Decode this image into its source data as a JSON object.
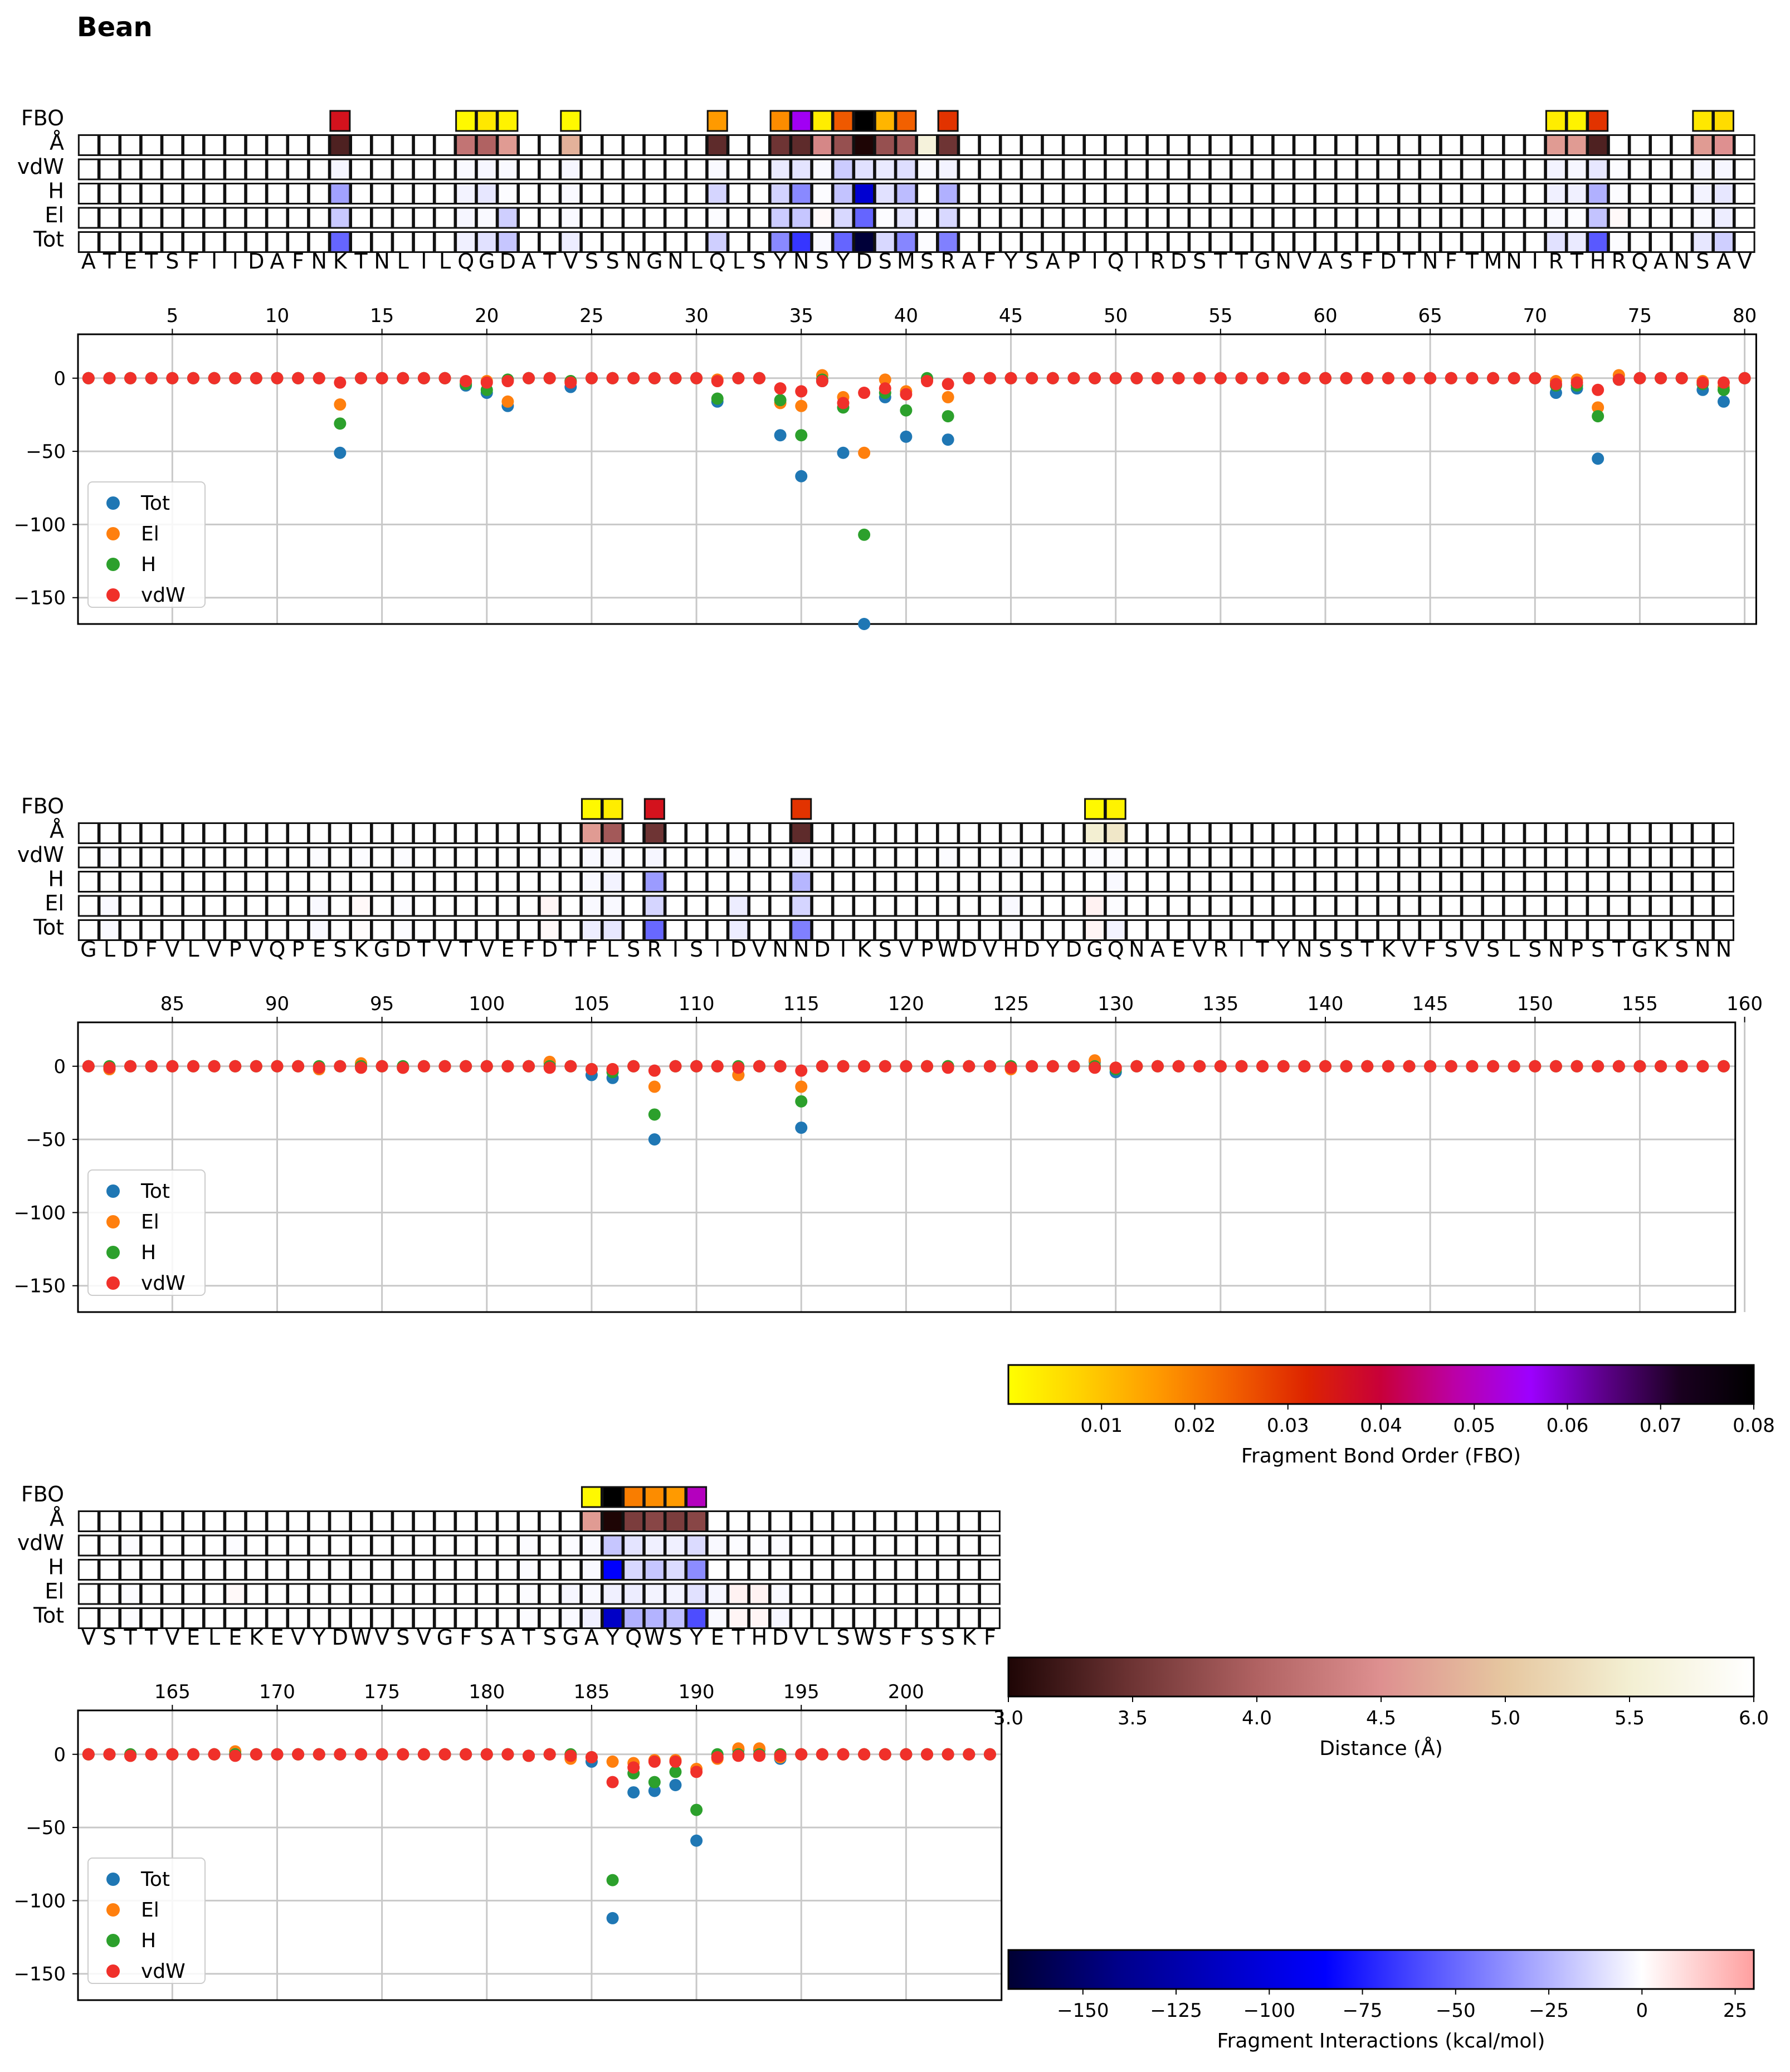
{
  "title": "Bean",
  "row_labels": [
    "FBO",
    "Å",
    "vdW",
    "H",
    "El",
    "Tot"
  ],
  "legend": [
    "Tot",
    "El",
    "H",
    "vdW"
  ],
  "series_colors": {
    "Tot": "#1f77b4",
    "El": "#ff7f0e",
    "H": "#2ca02c",
    "vdW": "#f0302a"
  },
  "cell_border": "#111111",
  "grid_color": "#c8c8c8",
  "chart_data": [
    {
      "type": "scatter",
      "panel": 1,
      "first_residue": 1,
      "sequence": "ATETSFIIDAFNKTNLILQGDATVSSNGNLQLSYNSYDSMSRAFYSAPIQIRDSTTGNVASFDTNFTMNIRTHRQANSAV",
      "x_ticks": [
        5,
        10,
        15,
        20,
        25,
        30,
        35,
        40,
        45,
        50,
        55,
        60,
        65,
        70,
        75,
        80
      ],
      "y_ticks": [
        0,
        -50,
        -100,
        -150
      ],
      "ylim": [
        -168,
        30
      ],
      "interactions": [
        {
          "pos": 13,
          "Tot": -51,
          "El": -18,
          "H": -31,
          "vdW": -3,
          "fbo": 0.036,
          "dist": 3.3
        },
        {
          "pos": 19,
          "Tot": -5,
          "El": -3,
          "H": -4,
          "vdW": -2,
          "fbo": 0.001,
          "dist": 4.2
        },
        {
          "pos": 20,
          "Tot": -10,
          "El": -2,
          "H": -8,
          "vdW": -3,
          "fbo": 0.004,
          "dist": 4.0
        },
        {
          "pos": 21,
          "Tot": -19,
          "El": -16,
          "H": -1,
          "vdW": -2,
          "fbo": 0.002,
          "dist": 4.6
        },
        {
          "pos": 24,
          "Tot": -6,
          "El": -2,
          "H": -2,
          "vdW": -3,
          "fbo": 0.001,
          "dist": 4.8
        },
        {
          "pos": 31,
          "Tot": -16,
          "El": -1,
          "H": -14,
          "vdW": -2,
          "fbo": 0.016,
          "dist": 3.4
        },
        {
          "pos": 34,
          "Tot": -39,
          "El": -17,
          "H": -15,
          "vdW": -7,
          "fbo": 0.018,
          "dist": 3.5
        },
        {
          "pos": 35,
          "Tot": -67,
          "El": -19,
          "H": -39,
          "vdW": -9,
          "fbo": 0.055,
          "dist": 3.4
        },
        {
          "pos": 36,
          "Tot": -2,
          "El": 2,
          "H": -1,
          "vdW": -2,
          "fbo": 0.003,
          "dist": 4.4
        },
        {
          "pos": 37,
          "Tot": -51,
          "El": -13,
          "H": -20,
          "vdW": -17,
          "fbo": 0.025,
          "dist": 3.8
        },
        {
          "pos": 38,
          "Tot": -168,
          "El": -51,
          "H": -107,
          "vdW": -10,
          "fbo": 0.08,
          "dist": 3.0
        },
        {
          "pos": 39,
          "Tot": -13,
          "El": -1,
          "H": -10,
          "vdW": -7,
          "fbo": 0.012,
          "dist": 3.8
        },
        {
          "pos": 40,
          "Tot": -40,
          "El": -9,
          "H": -22,
          "vdW": -11,
          "fbo": 0.024,
          "dist": 3.9
        },
        {
          "pos": 41,
          "Tot": -1,
          "El": -1,
          "H": 0,
          "vdW": -2,
          "fbo": 0,
          "dist": 5.6
        },
        {
          "pos": 42,
          "Tot": -42,
          "El": -13,
          "H": -26,
          "vdW": -4,
          "fbo": 0.03,
          "dist": 3.5
        },
        {
          "pos": 71,
          "Tot": -10,
          "El": -2,
          "H": -5,
          "vdW": -4,
          "fbo": 0.003,
          "dist": 4.6
        },
        {
          "pos": 72,
          "Tot": -7,
          "El": -1,
          "H": -5,
          "vdW": -3,
          "fbo": 0.002,
          "dist": 4.6
        },
        {
          "pos": 73,
          "Tot": -55,
          "El": -20,
          "H": -26,
          "vdW": -8,
          "fbo": 0.03,
          "dist": 3.3
        },
        {
          "pos": 74,
          "Tot": -1,
          "El": 2,
          "H": -1,
          "vdW": -1,
          "fbo": 0,
          "dist": 6.0
        },
        {
          "pos": 78,
          "Tot": -8,
          "El": -2,
          "H": -4,
          "vdW": -3,
          "fbo": 0.004,
          "dist": 4.6
        },
        {
          "pos": 79,
          "Tot": -16,
          "El": -6,
          "H": -8,
          "vdW": -3,
          "fbo": 0.006,
          "dist": 4.5
        }
      ]
    },
    {
      "type": "scatter",
      "panel": 2,
      "first_residue": 81,
      "sequence": "GLDFVLVPVQPESKGDTVTVEFDTFLSRISIDVNNDIKSVPWDVHDYDGQNAEVRITYNSSTKVFSVSLSNPSTGKSNN",
      "x_ticks": [
        85,
        90,
        95,
        100,
        105,
        110,
        115,
        120,
        125,
        130,
        135,
        140,
        145,
        150,
        155,
        160
      ],
      "y_ticks": [
        0,
        -50,
        -100,
        -150
      ],
      "ylim": [
        -168,
        30
      ],
      "interactions": [
        {
          "pos": 82,
          "Tot": -2,
          "El": -2,
          "H": 0,
          "vdW": -1,
          "fbo": 0,
          "dist": 6.0
        },
        {
          "pos": 92,
          "Tot": -2,
          "El": -2,
          "H": 0,
          "vdW": -1,
          "fbo": 0,
          "dist": 6.0
        },
        {
          "pos": 94,
          "Tot": 1,
          "El": 2,
          "H": 0,
          "vdW": -1,
          "fbo": 0,
          "dist": 6.0
        },
        {
          "pos": 96,
          "Tot": -1,
          "El": -1,
          "H": 0,
          "vdW": -1,
          "fbo": 0,
          "dist": 6.0
        },
        {
          "pos": 103,
          "Tot": 2,
          "El": 3,
          "H": 0,
          "vdW": -1,
          "fbo": 0,
          "dist": 6.0
        },
        {
          "pos": 105,
          "Tot": -6,
          "El": -2,
          "H": -2,
          "vdW": -2,
          "fbo": 0.001,
          "dist": 4.6
        },
        {
          "pos": 106,
          "Tot": -8,
          "El": -2,
          "H": -4,
          "vdW": -2,
          "fbo": 0.003,
          "dist": 3.9
        },
        {
          "pos": 108,
          "Tot": -50,
          "El": -14,
          "H": -33,
          "vdW": -3,
          "fbo": 0.036,
          "dist": 3.5
        },
        {
          "pos": 112,
          "Tot": -6,
          "El": -6,
          "H": 0,
          "vdW": -1,
          "fbo": 0,
          "dist": 6.0
        },
        {
          "pos": 115,
          "Tot": -42,
          "El": -14,
          "H": -24,
          "vdW": -3,
          "fbo": 0.03,
          "dist": 3.4
        },
        {
          "pos": 122,
          "Tot": 0,
          "El": 0,
          "H": 0,
          "vdW": -1,
          "fbo": 0,
          "dist": 6.0
        },
        {
          "pos": 125,
          "Tot": -1,
          "El": -2,
          "H": 0,
          "vdW": -1,
          "fbo": 0,
          "dist": 6.0
        },
        {
          "pos": 129,
          "Tot": 3,
          "El": 4,
          "H": 0,
          "vdW": -1,
          "fbo": 0.001,
          "dist": 5.5
        },
        {
          "pos": 130,
          "Tot": -4,
          "El": -1,
          "H": -2,
          "vdW": -1,
          "fbo": 0.002,
          "dist": 5.4
        }
      ]
    },
    {
      "type": "scatter",
      "panel": 3,
      "first_residue": 161,
      "sequence": "VSTTVELEKEVYDWVSVGFSATSGAYQWSYETHDVLSWSFSSKF",
      "x_ticks": [
        165,
        170,
        175,
        180,
        185,
        190,
        195,
        200
      ],
      "y_ticks": [
        0,
        -50,
        -100,
        -150
      ],
      "ylim": [
        -168,
        30
      ],
      "interactions": [
        {
          "pos": 163,
          "Tot": -1,
          "El": -1,
          "H": 0,
          "vdW": -1,
          "fbo": 0,
          "dist": 6.0
        },
        {
          "pos": 168,
          "Tot": 0,
          "El": 2,
          "H": 0,
          "vdW": -1,
          "fbo": 0,
          "dist": 6.0
        },
        {
          "pos": 182,
          "Tot": -1,
          "El": -1,
          "H": -1,
          "vdW": -1,
          "fbo": 0,
          "dist": 6.0
        },
        {
          "pos": 184,
          "Tot": -2,
          "El": -3,
          "H": 0,
          "vdW": -1,
          "fbo": 0,
          "dist": 6.0
        },
        {
          "pos": 185,
          "Tot": -5,
          "El": -2,
          "H": -2,
          "vdW": -2,
          "fbo": 0.001,
          "dist": 4.6
        },
        {
          "pos": 186,
          "Tot": -112,
          "El": -5,
          "H": -86,
          "vdW": -19,
          "fbo": 0.08,
          "dist": 3.0
        },
        {
          "pos": 187,
          "Tot": -26,
          "El": -6,
          "H": -13,
          "vdW": -9,
          "fbo": 0.02,
          "dist": 3.6
        },
        {
          "pos": 188,
          "Tot": -25,
          "El": -4,
          "H": -19,
          "vdW": -5,
          "fbo": 0.018,
          "dist": 3.7
        },
        {
          "pos": 189,
          "Tot": -21,
          "El": -4,
          "H": -12,
          "vdW": -5,
          "fbo": 0.016,
          "dist": 3.6
        },
        {
          "pos": 190,
          "Tot": -59,
          "El": -10,
          "H": -38,
          "vdW": -12,
          "fbo": 0.05,
          "dist": 3.7
        },
        {
          "pos": 191,
          "Tot": -2,
          "El": -3,
          "H": 0,
          "vdW": -2,
          "fbo": 0,
          "dist": 6.0
        },
        {
          "pos": 192,
          "Tot": 3,
          "El": 4,
          "H": 0,
          "vdW": -1,
          "fbo": 0,
          "dist": 6.0
        },
        {
          "pos": 193,
          "Tot": 3,
          "El": 4,
          "H": 0,
          "vdW": -1,
          "fbo": 0,
          "dist": 6.0
        },
        {
          "pos": 194,
          "Tot": -3,
          "El": -2,
          "H": 0,
          "vdW": -1,
          "fbo": 0,
          "dist": 6.0
        }
      ]
    }
  ],
  "colorbars": [
    {
      "name": "fbo",
      "label": "Fragment Bond Order (FBO)",
      "range": [
        0,
        0.08
      ],
      "ticks": [
        "0.01",
        "0.02",
        "0.03",
        "0.04",
        "0.05",
        "0.06",
        "0.07",
        "0.08"
      ],
      "tick_values": [
        0.01,
        0.02,
        0.03,
        0.04,
        0.05,
        0.06,
        0.07,
        0.08
      ],
      "colors": [
        "#ffff00",
        "#ffd000",
        "#ff9a00",
        "#f26000",
        "#dd2400",
        "#c8003a",
        "#bb00a8",
        "#9d00ff",
        "#5c0088",
        "#1a0020",
        "#000000"
      ]
    },
    {
      "name": "dist",
      "label": "Distance (Å)",
      "range": [
        3.0,
        6.0
      ],
      "ticks": [
        "3.0",
        "3.5",
        "4.0",
        "4.5",
        "5.0",
        "5.5",
        "6.0"
      ],
      "tick_values": [
        3.0,
        3.5,
        4.0,
        4.5,
        5.0,
        5.5,
        6.0
      ],
      "colors": [
        "#1e0505",
        "#6e3434",
        "#b06262",
        "#de9090",
        "#e6c7a0",
        "#f3efd2",
        "#ffffff"
      ]
    },
    {
      "name": "energy",
      "label": "Fragment Interactions (kcal/mol)",
      "range": [
        -170,
        30
      ],
      "ticks": [
        "−150",
        "−125",
        "−100",
        "−75",
        "−50",
        "−25",
        "0",
        "25"
      ],
      "tick_values": [
        -150,
        -125,
        -100,
        -75,
        -50,
        -25,
        0,
        25
      ],
      "colors": [
        "#000033",
        "#00008b",
        "#0000ff",
        "#8080ff",
        "#ffffff",
        "#ff9f9f"
      ],
      "stops": [
        -170,
        -140,
        -85,
        -42,
        0,
        30
      ]
    }
  ]
}
